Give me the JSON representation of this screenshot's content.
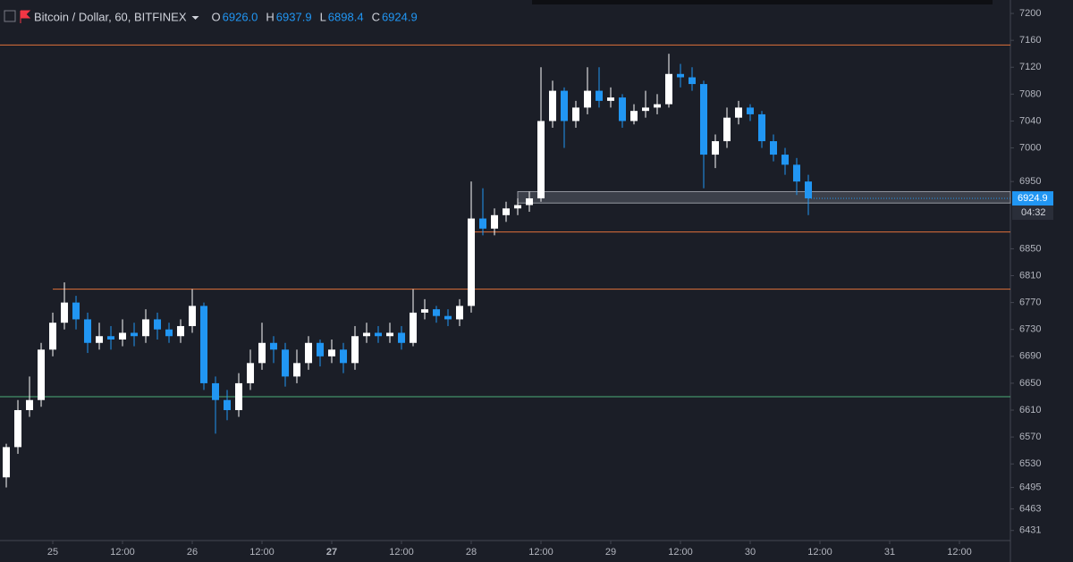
{
  "chart_data": {
    "type": "candlestick",
    "title": "Bitcoin / Dollar, 60, BITFINEX",
    "ohlc_legend": [
      {
        "label": "O",
        "value": "6926.0"
      },
      {
        "label": "H",
        "value": "6937.9"
      },
      {
        "label": "L",
        "value": "6898.4"
      },
      {
        "label": "C",
        "value": "6924.9"
      }
    ],
    "up_color": "#ffffff",
    "down_color": "#2196f3",
    "x": [
      -8,
      -6,
      -4,
      -2,
      0,
      2,
      4,
      6,
      8,
      10,
      12,
      14,
      16,
      18,
      20,
      22,
      24,
      26,
      28,
      30,
      32,
      34,
      36,
      38,
      40,
      42,
      44,
      46,
      48,
      50,
      52,
      54,
      56,
      58,
      60,
      62,
      64,
      66,
      68,
      70,
      72,
      74,
      76,
      78,
      80,
      82,
      84,
      86,
      88,
      90,
      92,
      94,
      96,
      98,
      100,
      102,
      104,
      106,
      108,
      110,
      112,
      114,
      116,
      118,
      120,
      122,
      124,
      126,
      128,
      130
    ],
    "open": [
      6510,
      6555,
      6610,
      6625,
      6700,
      6740,
      6770,
      6745,
      6710,
      6720,
      6715,
      6725,
      6720,
      6745,
      6730,
      6720,
      6735,
      6765,
      6650,
      6625,
      6610,
      6650,
      6680,
      6710,
      6700,
      6660,
      6680,
      6710,
      6690,
      6700,
      6680,
      6720,
      6725,
      6720,
      6725,
      6710,
      6755,
      6760,
      6750,
      6745,
      6765,
      6895,
      6880,
      6900,
      6910,
      6915,
      6925,
      7040,
      7085,
      7040,
      7060,
      7085,
      7070,
      7075,
      7040,
      7055,
      7060,
      7065,
      7110,
      7105,
      7095,
      6990,
      7010,
      7045,
      7060,
      7050,
      7010,
      6990,
      6975,
      6950
    ],
    "high": [
      6560,
      6625,
      6660,
      6710,
      6755,
      6800,
      6780,
      6755,
      6740,
      6735,
      6745,
      6740,
      6760,
      6755,
      6740,
      6745,
      6790,
      6770,
      6660,
      6640,
      6665,
      6700,
      6740,
      6720,
      6710,
      6700,
      6720,
      6715,
      6715,
      6710,
      6735,
      6740,
      6735,
      6740,
      6735,
      6790,
      6775,
      6765,
      6760,
      6775,
      6950,
      6940,
      6910,
      6920,
      6925,
      6935,
      7120,
      7100,
      7090,
      7070,
      7120,
      7120,
      7090,
      7080,
      7065,
      7085,
      7080,
      7140,
      7125,
      7120,
      7100,
      7020,
      7060,
      7070,
      7065,
      7055,
      7020,
      7000,
      6985,
      6960
    ],
    "low": [
      6495,
      6545,
      6600,
      6615,
      6690,
      6730,
      6730,
      6695,
      6700,
      6700,
      6705,
      6705,
      6710,
      6715,
      6710,
      6710,
      6725,
      6640,
      6575,
      6595,
      6600,
      6640,
      6670,
      6680,
      6645,
      6650,
      6670,
      6675,
      6680,
      6665,
      6670,
      6710,
      6710,
      6710,
      6700,
      6705,
      6745,
      6740,
      6735,
      6735,
      6755,
      6870,
      6870,
      6890,
      6900,
      6905,
      6920,
      7030,
      7000,
      7030,
      7050,
      7060,
      7060,
      7030,
      7035,
      7045,
      7050,
      7060,
      7090,
      7085,
      6940,
      6970,
      7000,
      7035,
      7040,
      7000,
      6980,
      6960,
      6930,
      6900
    ],
    "close": [
      6555,
      6610,
      6625,
      6700,
      6740,
      6770,
      6745,
      6710,
      6720,
      6715,
      6725,
      6720,
      6745,
      6730,
      6720,
      6735,
      6765,
      6650,
      6625,
      6610,
      6650,
      6680,
      6710,
      6700,
      6660,
      6680,
      6710,
      6690,
      6700,
      6680,
      6720,
      6725,
      6720,
      6725,
      6710,
      6755,
      6760,
      6750,
      6745,
      6765,
      6895,
      6880,
      6900,
      6910,
      6915,
      6925,
      7040,
      7085,
      7040,
      7060,
      7085,
      7070,
      7075,
      7040,
      7055,
      7060,
      7065,
      7110,
      7105,
      7095,
      6990,
      7010,
      7045,
      7060,
      7050,
      7010,
      6990,
      6975,
      6950,
      6925
    ],
    "levels": [
      {
        "value": 7153,
        "color": "#e0703a",
        "from": -9.08
      },
      {
        "value": 6875,
        "color": "#e0703a",
        "from": 72
      },
      {
        "value": 6790,
        "color": "#e0703a",
        "from": 0
      },
      {
        "value": 6630,
        "color": "#4caf7a",
        "from": -9.08
      }
    ],
    "zone": {
      "low": 6918,
      "high": 6935,
      "from": 80
    },
    "last_price": {
      "value": 6924.9,
      "label": "6924.9"
    },
    "countdown": "04:32",
    "xlim": [
      -9.08,
      164.77
    ],
    "ylim": [
      6416,
      7220
    ],
    "yticks": [
      7200,
      7160,
      7120,
      7080,
      7040,
      7000,
      6950,
      6850,
      6810,
      6770,
      6730,
      6690,
      6650,
      6610,
      6570,
      6530,
      6495,
      6463,
      6431
    ],
    "xticks": [
      {
        "value": 0,
        "label": "25"
      },
      {
        "value": 12,
        "label": "12:00"
      },
      {
        "value": 24,
        "label": "26"
      },
      {
        "value": 36,
        "label": "12:00"
      },
      {
        "value": 48,
        "label": "27"
      },
      {
        "value": 60,
        "label": "12:00"
      },
      {
        "value": 72,
        "label": "28"
      },
      {
        "value": 84,
        "label": "12:00"
      },
      {
        "value": 96,
        "label": "29"
      },
      {
        "value": 108,
        "label": "12:00"
      },
      {
        "value": 120,
        "label": "30"
      },
      {
        "value": 132,
        "label": "12:00"
      },
      {
        "value": 144,
        "label": "31"
      },
      {
        "value": 156,
        "label": "12:00"
      }
    ]
  }
}
